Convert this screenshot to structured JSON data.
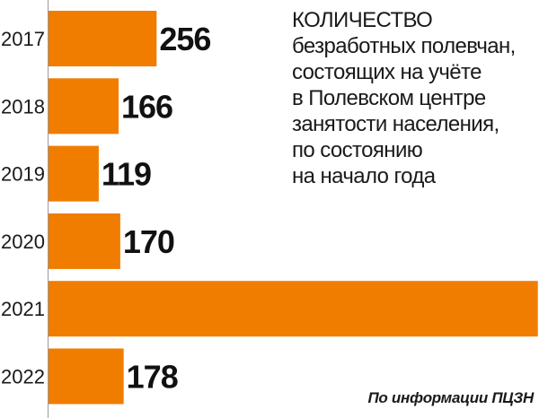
{
  "chart_data": {
    "type": "bar",
    "orientation": "horizontal",
    "categories": [
      "2017",
      "2018",
      "2019",
      "2020",
      "2021",
      "2022"
    ],
    "values": [
      256,
      166,
      119,
      170,
      1159,
      178
    ],
    "title_lines": [
      "КОЛИЧЕСТВО",
      "безработных полевчан,",
      "состоящих на учёте",
      "в Полевском центре",
      "занятости населения,",
      "по состоянию",
      "на начало года"
    ],
    "source": "По информации ПЦЗН",
    "bar_color": "#f07d00",
    "grid": false,
    "legend": "none"
  }
}
